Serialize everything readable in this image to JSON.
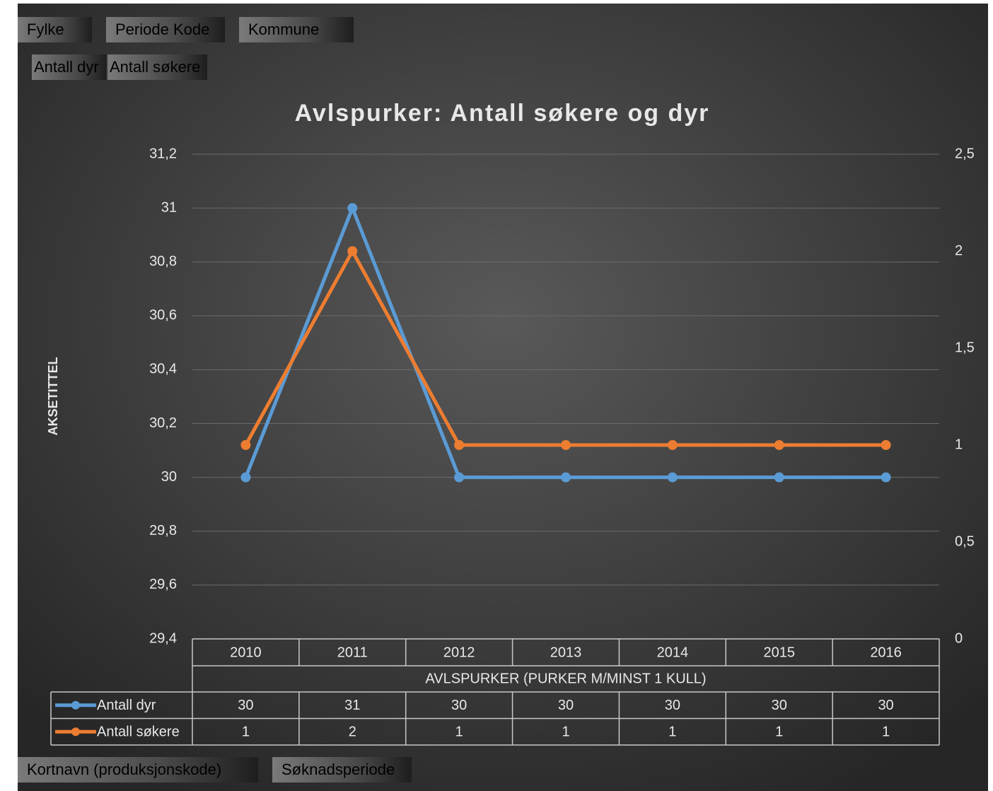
{
  "filter_fields": [
    "Fylke",
    "Periode Kode",
    "Kommune"
  ],
  "value_fields": [
    "Antall dyr",
    "Antall søkere"
  ],
  "axis_fields": [
    "Kortnavn (produksjonskode)",
    "Søknadsperiode"
  ],
  "chart_data": {
    "type": "line",
    "title": "Avlspurker: Antall søkere og dyr",
    "x_axis_label": "AVLSPURKER (PURKER M/MINST 1 KULL)",
    "y_axis_label": "AKSETITTEL",
    "categories": [
      "2010",
      "2011",
      "2012",
      "2013",
      "2014",
      "2015",
      "2016"
    ],
    "series": [
      {
        "name": "Antall dyr",
        "color": "#5b9bd5",
        "values": [
          30,
          31,
          30,
          30,
          30,
          30,
          30
        ]
      },
      {
        "name": "Antall søkere",
        "color": "#ed7d31",
        "axis": "y2",
        "values": [
          1,
          2,
          1,
          1,
          1,
          1,
          1
        ]
      }
    ],
    "ylim": [
      29.4,
      31.2
    ],
    "yticks": [
      {
        "value": 29.4,
        "label": "29,4"
      },
      {
        "value": 29.6,
        "label": "29,6"
      },
      {
        "value": 29.8,
        "label": "29,8"
      },
      30,
      {
        "value": 30.2,
        "label": "30,2"
      },
      {
        "value": 30.4,
        "label": "30,4"
      },
      {
        "value": 30.6,
        "label": "30,6"
      },
      {
        "value": 30.8,
        "label": "30,8"
      },
      31,
      {
        "value": 31.2,
        "label": "31,2"
      }
    ],
    "y2lim": [
      0,
      2.5
    ],
    "y2ticks": [
      0,
      {
        "value": 0.5,
        "label": "0,5"
      },
      1,
      {
        "value": 1.5,
        "label": "1,5"
      },
      2,
      {
        "value": 2.5,
        "label": "2,5"
      }
    ],
    "grid": true,
    "data_table": true
  }
}
